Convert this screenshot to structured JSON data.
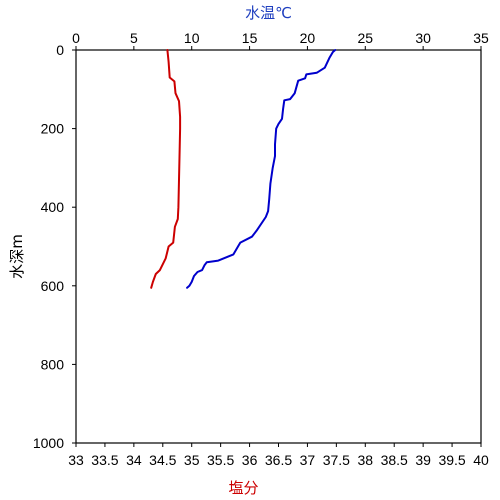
{
  "chart_data": {
    "type": "line",
    "top_axis": {
      "label": "水温℃",
      "color": "#1f3fbf",
      "range": [
        0,
        35
      ],
      "ticks": [
        "0",
        "5",
        "10",
        "15",
        "20",
        "25",
        "30",
        "35"
      ],
      "tick_values": [
        0,
        5,
        10,
        15,
        20,
        25,
        30,
        35
      ]
    },
    "bottom_axis": {
      "label": "塩分",
      "color": "#cc0000",
      "range": [
        33,
        40
      ],
      "ticks": [
        "33",
        "33.5",
        "34",
        "34.5",
        "35",
        "35.5",
        "36",
        "36.5",
        "37",
        "37.5",
        "38",
        "38.5",
        "39",
        "39.5",
        "40"
      ],
      "tick_values": [
        33,
        33.5,
        34,
        34.5,
        35,
        35.5,
        36,
        36.5,
        37,
        37.5,
        38,
        38.5,
        39,
        39.5,
        40
      ]
    },
    "y_axis": {
      "label": "水深m",
      "range": [
        0,
        1000
      ],
      "reversed": true,
      "ticks": [
        "0",
        "200",
        "400",
        "600",
        "800",
        "1000"
      ],
      "tick_values": [
        0,
        200,
        400,
        600,
        800,
        1000
      ]
    },
    "series": [
      {
        "axis": "top",
        "color": "#0000cc",
        "points": [
          {
            "x": 22.4,
            "y": 0
          },
          {
            "x": 22.2,
            "y": 5
          },
          {
            "x": 21.9,
            "y": 20
          },
          {
            "x": 21.5,
            "y": 45
          },
          {
            "x": 20.8,
            "y": 58
          },
          {
            "x": 19.9,
            "y": 62
          },
          {
            "x": 19.8,
            "y": 72
          },
          {
            "x": 19.2,
            "y": 78
          },
          {
            "x": 18.9,
            "y": 110
          },
          {
            "x": 18.5,
            "y": 125
          },
          {
            "x": 18.0,
            "y": 128
          },
          {
            "x": 17.9,
            "y": 150
          },
          {
            "x": 17.8,
            "y": 175
          },
          {
            "x": 17.5,
            "y": 188
          },
          {
            "x": 17.3,
            "y": 200
          },
          {
            "x": 17.2,
            "y": 240
          },
          {
            "x": 17.2,
            "y": 270
          },
          {
            "x": 17.0,
            "y": 300
          },
          {
            "x": 16.8,
            "y": 340
          },
          {
            "x": 16.7,
            "y": 380
          },
          {
            "x": 16.6,
            "y": 410
          },
          {
            "x": 16.4,
            "y": 425
          },
          {
            "x": 15.6,
            "y": 460
          },
          {
            "x": 15.2,
            "y": 475
          },
          {
            "x": 14.2,
            "y": 490
          },
          {
            "x": 14.0,
            "y": 500
          },
          {
            "x": 13.6,
            "y": 520
          },
          {
            "x": 12.3,
            "y": 536
          },
          {
            "x": 11.3,
            "y": 540
          },
          {
            "x": 11.1,
            "y": 548
          },
          {
            "x": 10.9,
            "y": 560
          },
          {
            "x": 10.5,
            "y": 565
          },
          {
            "x": 10.2,
            "y": 575
          },
          {
            "x": 10.0,
            "y": 590
          },
          {
            "x": 9.8,
            "y": 600
          },
          {
            "x": 9.6,
            "y": 605
          }
        ]
      },
      {
        "axis": "bottom",
        "color": "#cc0000",
        "points": [
          {
            "x": 34.58,
            "y": 0
          },
          {
            "x": 34.6,
            "y": 30
          },
          {
            "x": 34.62,
            "y": 70
          },
          {
            "x": 34.7,
            "y": 80
          },
          {
            "x": 34.72,
            "y": 110
          },
          {
            "x": 34.78,
            "y": 130
          },
          {
            "x": 34.8,
            "y": 170
          },
          {
            "x": 34.8,
            "y": 200
          },
          {
            "x": 34.79,
            "y": 260
          },
          {
            "x": 34.78,
            "y": 330
          },
          {
            "x": 34.77,
            "y": 400
          },
          {
            "x": 34.76,
            "y": 430
          },
          {
            "x": 34.71,
            "y": 450
          },
          {
            "x": 34.68,
            "y": 490
          },
          {
            "x": 34.6,
            "y": 500
          },
          {
            "x": 34.55,
            "y": 530
          },
          {
            "x": 34.5,
            "y": 545
          },
          {
            "x": 34.45,
            "y": 560
          },
          {
            "x": 34.38,
            "y": 570
          },
          {
            "x": 34.33,
            "y": 590
          },
          {
            "x": 34.3,
            "y": 605
          }
        ]
      }
    ]
  }
}
